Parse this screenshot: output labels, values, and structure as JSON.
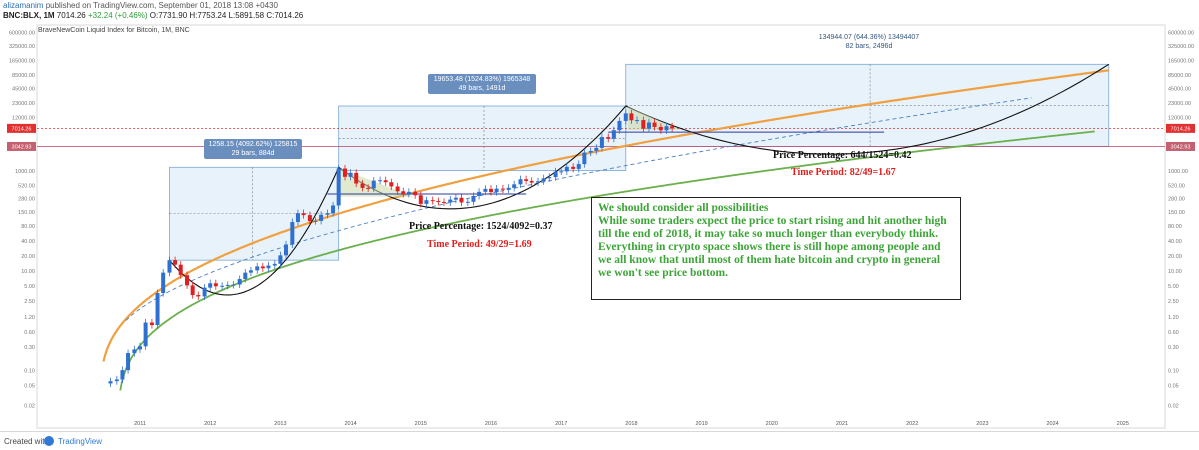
{
  "header": {
    "user": "alizamanim",
    "published": "published on TradingView.com, September 01, 2018 13:08 +0430",
    "symbol_line": "BNC:BLX, 1M",
    "price": "7014.26",
    "change": "+32.24 (+0.46%)",
    "ohlc": "O:7731.90 H:7753.24 L:5891.58 C:7014.26"
  },
  "chart_title": "BraveNewCoin Liquid Index for Bitcoin, 1M, BNC",
  "price_labels": {
    "current": "7014.26",
    "level": "3042.93"
  },
  "ranges": [
    {
      "line1": "1258.15 (4092.62%) 125815",
      "line2": "29 bars, 884d"
    },
    {
      "line1": "19653.48 (1524.83%) 1965348",
      "line2": "49 bars, 1491d"
    },
    {
      "line1": "134944.07 (644.36%) 13494407",
      "line2": "82 bars, 2496d"
    }
  ],
  "annotations": {
    "p1_price": "Price Percentage: 1524/4092=0.37",
    "p1_time": "Time Period: 49/29=1.69",
    "p2_price": "Price Percentage:  644/1524=0.42",
    "p2_time": "Time Period: 82/49=1.67",
    "box_title": "We should consider all possibilities",
    "box_body": "While some traders expect the price to start rising and hit another high till the end of 2018, it may take so much longer than everybody think. Everything in crypto space shows there is still hope among people and we all know that until most of them hate bitcoin and crypto in general we won't see price bottom."
  },
  "footer": {
    "created_with": "Created with",
    "brand": "TradingView"
  },
  "colors": {
    "up": "#2f6fd0",
    "down": "#e02020",
    "orange_curve": "#f0a040",
    "green_curve": "#6ab04c",
    "range_fill": "#d6e8f8",
    "range_stroke": "#7aa8d8",
    "current_line": "#e03030",
    "level_line": "#c04060"
  },
  "chart_data": {
    "type": "candlestick",
    "title": "BraveNewCoin Liquid Index for Bitcoin, 1M, BNC",
    "y_scale": "log",
    "y_ticks": [
      "600000.00",
      "325000.00",
      "165000.00",
      "85000.00",
      "45000.00",
      "23000.00",
      "12000.00",
      "7014.26",
      "3042.93",
      "1000.00",
      "520.00",
      "280.00",
      "150.00",
      "80.00",
      "40.00",
      "20.00",
      "10.00",
      "5.00",
      "2.50",
      "1.20",
      "0.60",
      "0.30",
      "0.10",
      "0.05",
      "0.02"
    ],
    "x_ticks": [
      "2011",
      "2012",
      "2013",
      "2014",
      "2015",
      "2016",
      "2017",
      "2018",
      "2019",
      "2020",
      "2021",
      "2022",
      "2023",
      "2024",
      "2025"
    ],
    "series": [
      {
        "name": "BNC:BLX",
        "points": [
          [
            2010.58,
            0.06
          ],
          [
            2010.67,
            0.065
          ],
          [
            2010.75,
            0.1
          ],
          [
            2010.83,
            0.22
          ],
          [
            2010.92,
            0.26
          ],
          [
            2011.0,
            0.3
          ],
          [
            2011.08,
            0.9
          ],
          [
            2011.17,
            0.8
          ],
          [
            2011.25,
            3.5
          ],
          [
            2011.33,
            9
          ],
          [
            2011.42,
            16
          ],
          [
            2011.5,
            13
          ],
          [
            2011.58,
            8
          ],
          [
            2011.67,
            5
          ],
          [
            2011.75,
            3.2
          ],
          [
            2011.83,
            3
          ],
          [
            2011.92,
            4.5
          ],
          [
            2012.0,
            5.5
          ],
          [
            2012.08,
            4.8
          ],
          [
            2012.17,
            4.9
          ],
          [
            2012.25,
            5.1
          ],
          [
            2012.33,
            5.2
          ],
          [
            2012.42,
            6.7
          ],
          [
            2012.5,
            9
          ],
          [
            2012.58,
            10
          ],
          [
            2012.67,
            12
          ],
          [
            2012.75,
            11
          ],
          [
            2012.83,
            12.5
          ],
          [
            2012.92,
            13.5
          ],
          [
            2013.0,
            20
          ],
          [
            2013.08,
            33
          ],
          [
            2013.17,
            93
          ],
          [
            2013.25,
            140
          ],
          [
            2013.33,
            128
          ],
          [
            2013.42,
            97
          ],
          [
            2013.5,
            98
          ],
          [
            2013.58,
            130
          ],
          [
            2013.67,
            140
          ],
          [
            2013.75,
            200
          ],
          [
            2013.83,
            1100
          ],
          [
            2013.92,
            750
          ],
          [
            2014.0,
            900
          ],
          [
            2014.08,
            550
          ],
          [
            2014.17,
            450
          ],
          [
            2014.25,
            440
          ],
          [
            2014.33,
            630
          ],
          [
            2014.42,
            640
          ],
          [
            2014.5,
            585
          ],
          [
            2014.58,
            480
          ],
          [
            2014.67,
            385
          ],
          [
            2014.75,
            340
          ],
          [
            2014.83,
            375
          ],
          [
            2014.92,
            320
          ],
          [
            2015.0,
            215
          ],
          [
            2015.08,
            255
          ],
          [
            2015.17,
            245
          ],
          [
            2015.25,
            235
          ],
          [
            2015.33,
            230
          ],
          [
            2015.42,
            262
          ],
          [
            2015.5,
            285
          ],
          [
            2015.58,
            230
          ],
          [
            2015.67,
            237
          ],
          [
            2015.75,
            310
          ],
          [
            2015.83,
            375
          ],
          [
            2015.92,
            430
          ],
          [
            2016.0,
            370
          ],
          [
            2016.08,
            435
          ],
          [
            2016.17,
            415
          ],
          [
            2016.25,
            450
          ],
          [
            2016.33,
            530
          ],
          [
            2016.42,
            670
          ],
          [
            2016.5,
            620
          ],
          [
            2016.58,
            575
          ],
          [
            2016.67,
            610
          ],
          [
            2016.75,
            700
          ],
          [
            2016.83,
            740
          ],
          [
            2016.92,
            960
          ],
          [
            2017.0,
            965
          ],
          [
            2017.08,
            1190
          ],
          [
            2017.17,
            1080
          ],
          [
            2017.25,
            1350
          ],
          [
            2017.33,
            2300
          ],
          [
            2017.42,
            2480
          ],
          [
            2017.5,
            2850
          ],
          [
            2017.58,
            4700
          ],
          [
            2017.67,
            4340
          ],
          [
            2017.75,
            6450
          ],
          [
            2017.83,
            9900
          ],
          [
            2017.92,
            14000
          ],
          [
            2018.0,
            10200
          ],
          [
            2018.08,
            10300
          ],
          [
            2018.17,
            6900
          ],
          [
            2018.25,
            9200
          ],
          [
            2018.33,
            7500
          ],
          [
            2018.42,
            6400
          ],
          [
            2018.5,
            7750
          ],
          [
            2018.58,
            7014
          ]
        ]
      }
    ]
  }
}
